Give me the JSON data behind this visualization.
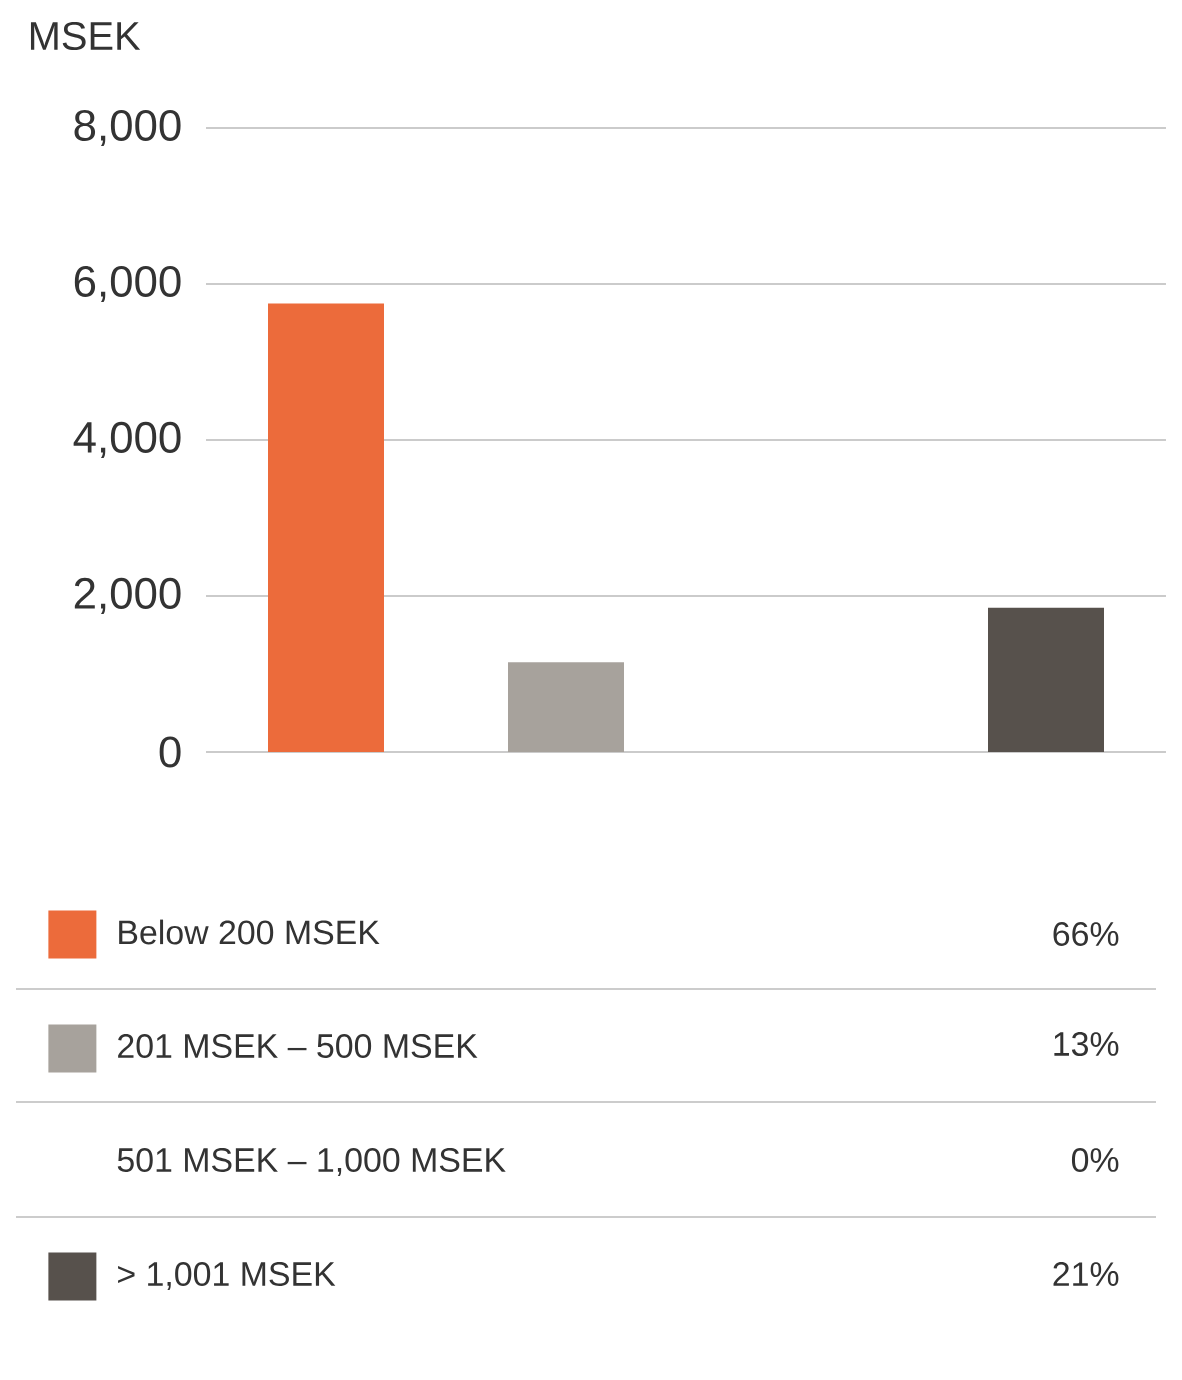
{
  "chart_data": {
    "type": "bar",
    "ylabel": "MSEK",
    "categories": [
      null,
      null,
      null,
      null
    ],
    "series": [
      {
        "name": "Below 200 MSEK",
        "color": "#ec6b3b",
        "values": [
          5750,
          null,
          null,
          null
        ]
      },
      {
        "name": "201 MSEK – 500 MSEK",
        "color": "#a7a29c",
        "values": [
          null,
          1150,
          null,
          null
        ]
      },
      {
        "name": "501 MSEK – 1,000 MSEK",
        "values": [
          null,
          null,
          0,
          null
        ]
      },
      {
        "name": "> 1,001 MSEK",
        "color": "#57514c",
        "values": [
          null,
          null,
          null,
          1850
        ]
      }
    ],
    "ylim": [
      0,
      8000
    ],
    "yticks": [
      0,
      {
        "value": 2000,
        "label": "2,000"
      },
      {
        "value": 4000,
        "label": "4,000"
      },
      {
        "value": 6000,
        "label": "6,000"
      },
      {
        "value": 8000,
        "label": "8,000"
      }
    ],
    "grid": "y",
    "legend": "bottom",
    "annotations": [
      "66%",
      "13%",
      "0%",
      "21%"
    ]
  }
}
